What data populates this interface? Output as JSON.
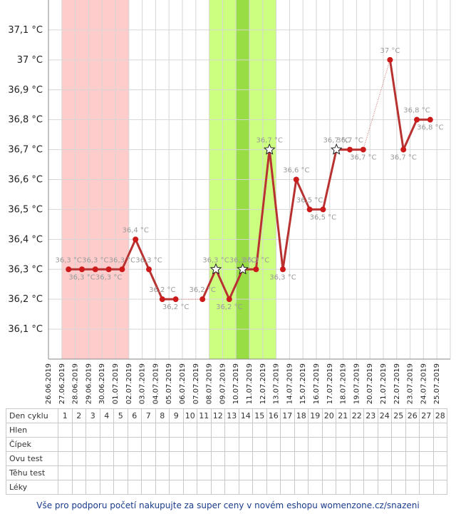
{
  "chart_data": {
    "type": "line",
    "title": "",
    "xlabel": "",
    "ylabel": "",
    "y_unit": "°C",
    "ylim": [
      36.0,
      37.2
    ],
    "y_ticks": [
      "36,1 °C",
      "36,2 °C",
      "36,3 °C",
      "36,4 °C",
      "36,5 °C",
      "36,6 °C",
      "36,7 °C",
      "36,8 °C",
      "36,9 °C",
      "37 °C",
      "37,1 °C"
    ],
    "y_tick_values": [
      36.1,
      36.2,
      36.3,
      36.4,
      36.5,
      36.6,
      36.7,
      36.8,
      36.9,
      37.0,
      37.1
    ],
    "grid": true,
    "categories": [
      "26.06.2019",
      "27.06.2019",
      "28.06.2019",
      "29.06.2019",
      "30.06.2019",
      "01.07.2019",
      "02.07.2019",
      "03.07.2019",
      "04.07.2019",
      "05.07.2019",
      "06.07.2019",
      "07.07.2019",
      "08.07.2019",
      "09.07.2019",
      "10.07.2019",
      "11.07.2019",
      "12.07.2019",
      "13.07.2019",
      "14.07.2019",
      "15.07.2019",
      "16.07.2019",
      "17.07.2019",
      "18.07.2019",
      "19.07.2019",
      "20.07.2019",
      "21.07.2019",
      "22.07.2019",
      "23.07.2019",
      "24.07.2019",
      "25.07.2019"
    ],
    "series": [
      {
        "values": [
          null,
          36.3,
          36.3,
          36.3,
          36.3,
          36.3,
          36.4,
          36.3,
          36.2,
          36.2,
          null,
          36.2,
          36.3,
          36.2,
          36.3,
          36.3,
          36.7,
          36.3,
          36.6,
          36.5,
          36.5,
          36.7,
          36.7,
          36.7,
          null,
          37.0,
          36.7,
          36.8,
          36.8,
          null
        ],
        "labels": [
          null,
          "36,3 °C",
          "36,3 °C",
          "36,3 °C",
          "36,3 °C",
          "36,3 °C",
          "36,4 °C",
          "36,3 °C",
          "36,2 °C",
          "36,2 °C",
          null,
          "36,2 °C",
          "36,3 °C",
          "36,2 °C",
          "36,3 °C",
          "36,3 °C",
          "36,7 °C",
          "36,3 °C",
          "36,6 °C",
          "36,5 °C",
          "36,5 °C",
          "36,7 °C",
          "36,7 °C",
          "36,7 °C",
          null,
          "37 °C",
          "36,7 °C",
          "36,8 °C",
          "36,8 °C",
          null
        ],
        "markers": [
          null,
          "dot",
          "dot",
          "dot",
          "dot",
          "dot",
          "dot",
          "dot",
          "dot",
          "dot",
          null,
          "dot",
          "star",
          "dot",
          "star",
          "dot",
          "star",
          "dot",
          "dot",
          "dot",
          "dot",
          "star",
          "dot",
          "dot",
          null,
          "dot",
          "dot",
          "dot",
          "dot",
          null
        ],
        "label_positions": [
          null,
          "above",
          "below",
          "above",
          "below",
          "above",
          "above",
          "above",
          "above",
          "below",
          null,
          "above",
          "above",
          "below",
          "above",
          "above",
          "above",
          "below",
          "above",
          "above",
          "below",
          "above",
          "above",
          "below",
          null,
          "above",
          "below",
          "above",
          "below",
          null
        ]
      }
    ],
    "bands": [
      {
        "kind": "menstruation",
        "from_index": 1,
        "to_index": 5,
        "color": "#ffcccc"
      },
      {
        "kind": "fertile",
        "from_index": 12,
        "to_index": 16,
        "color": "#ccff80"
      },
      {
        "kind": "peak",
        "from_index": 14,
        "to_index": 14,
        "color": "#99dd44"
      }
    ],
    "colors": {
      "line": "#b83232",
      "dot": "#cc1a1a",
      "gap_line": "#d07070"
    }
  },
  "table": {
    "rows": [
      {
        "label": "Den cyklu",
        "cells": [
          "1",
          "2",
          "3",
          "4",
          "5",
          "6",
          "7",
          "8",
          "9",
          "10",
          "11",
          "12",
          "13",
          "14",
          "15",
          "16",
          "17",
          "18",
          "19",
          "20",
          "21",
          "22",
          "23",
          "24",
          "25",
          "26",
          "27",
          "28"
        ]
      },
      {
        "label": "Hlen",
        "cells": []
      },
      {
        "label": "Čípek",
        "cells": []
      },
      {
        "label": "Ovu test",
        "cells": []
      },
      {
        "label": "Těhu test",
        "cells": []
      },
      {
        "label": "Léky",
        "cells": []
      }
    ]
  },
  "footer": {
    "text": "Vše pro podporu početí nakupujte za super ceny v novém eshopu womenzone.cz/snazeni",
    "color": "#1a3c8c"
  }
}
